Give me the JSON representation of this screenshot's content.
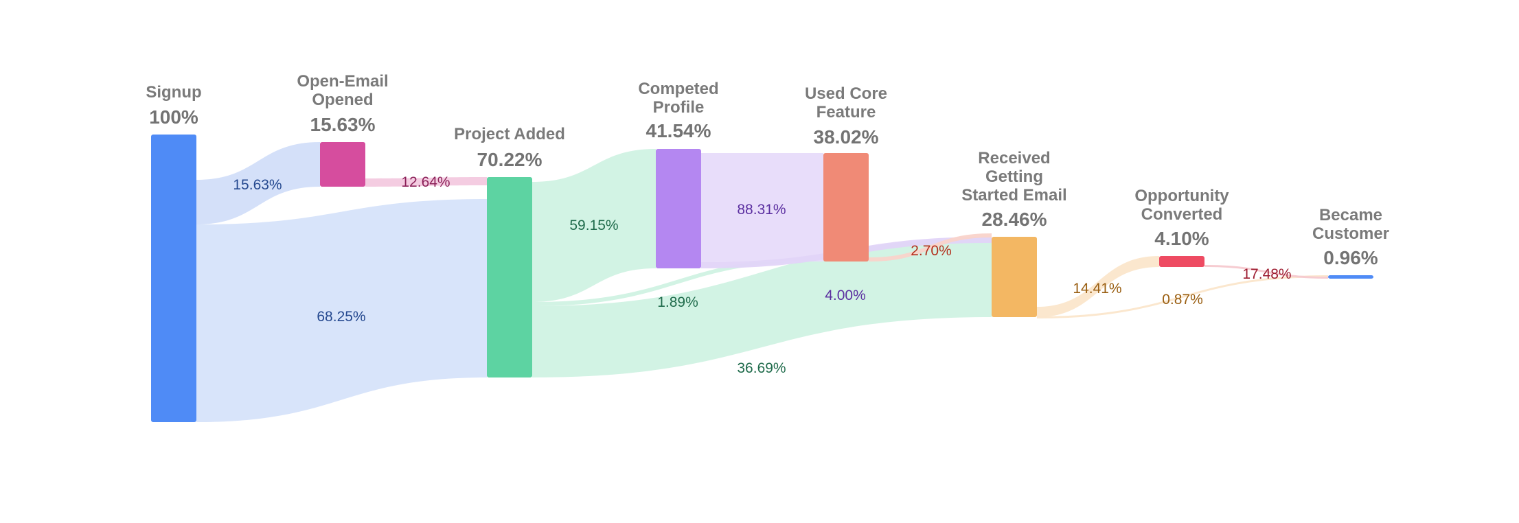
{
  "diagram": {
    "type": "sankey",
    "nodes": [
      {
        "id": "signup",
        "name_lines": [
          "Signup"
        ],
        "percent": "100%",
        "color": "#4f8bf6"
      },
      {
        "id": "open_email",
        "name_lines": [
          "Open-Email",
          "Opened"
        ],
        "percent": "15.63%",
        "color": "#d64d9e"
      },
      {
        "id": "project_added",
        "name_lines": [
          "Project Added"
        ],
        "percent": "70.22%",
        "color": "#5dd3a2"
      },
      {
        "id": "completed_profile",
        "name_lines": [
          "Competed",
          "Profile"
        ],
        "percent": "41.54%",
        "color": "#b487f1"
      },
      {
        "id": "used_core",
        "name_lines": [
          "Used Core",
          "Feature"
        ],
        "percent": "38.02%",
        "color": "#f08a76"
      },
      {
        "id": "received_email",
        "name_lines": [
          "Received",
          "Getting",
          "Started Email"
        ],
        "percent": "28.46%",
        "color": "#f3b763"
      },
      {
        "id": "opportunity",
        "name_lines": [
          "Opportunity",
          "Converted"
        ],
        "percent": "4.10%",
        "color": "#ee4b62"
      },
      {
        "id": "customer",
        "name_lines": [
          "Became",
          "Customer"
        ],
        "percent": "0.96%",
        "color": "#4f8bf6"
      }
    ],
    "flows": [
      {
        "from": "signup",
        "to": "open_email",
        "label": "15.63%",
        "fill": "#d2def9",
        "text_color": "#24488f"
      },
      {
        "from": "signup",
        "to": "project_added",
        "label": "68.25%",
        "fill": "#d6e3fa",
        "text_color": "#24488f"
      },
      {
        "from": "open_email",
        "to": "project_added",
        "label": "12.64%",
        "fill": "#f3c9df",
        "text_color": "#8c2159"
      },
      {
        "from": "project_added",
        "to": "completed_profile",
        "label": "59.15%",
        "fill": "#d0f2e3",
        "text_color": "#1f6b4b"
      },
      {
        "from": "project_added",
        "to": "used_core",
        "label": "1.89%",
        "fill": "#d0f2e3",
        "text_color": "#1f6b4b"
      },
      {
        "from": "project_added",
        "to": "received_email",
        "label": "36.69%",
        "fill": "#d0f2e3",
        "text_color": "#1f6b4b"
      },
      {
        "from": "completed_profile",
        "to": "used_core",
        "label": "88.31%",
        "fill": "#e7dbfa",
        "text_color": "#5b2fa0"
      },
      {
        "from": "completed_profile",
        "to": "received_email",
        "label": "4.00%",
        "fill": "#e2d4f8",
        "text_color": "#5b2fa0"
      },
      {
        "from": "used_core",
        "to": "received_email",
        "label": "2.70%",
        "fill": "#f9d3ca",
        "text_color": "#b3301d"
      },
      {
        "from": "received_email",
        "to": "opportunity",
        "label": "14.41%",
        "fill": "#fbe6cb",
        "text_color": "#9a5f12"
      },
      {
        "from": "received_email",
        "to": "customer",
        "label": "0.87%",
        "fill": "#fbe6cb",
        "text_color": "#9a5f12"
      },
      {
        "from": "opportunity",
        "to": "customer",
        "label": "17.48%",
        "fill": "#f6c9cf",
        "text_color": "#9c1a2e"
      }
    ]
  }
}
